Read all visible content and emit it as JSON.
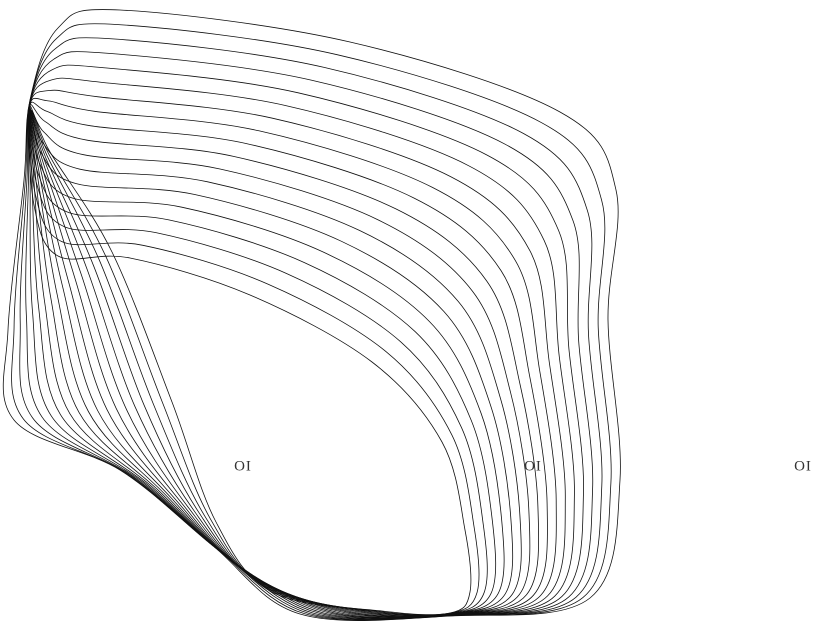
{
  "labels": [
    "OI",
    "OI",
    "OI"
  ]
}
